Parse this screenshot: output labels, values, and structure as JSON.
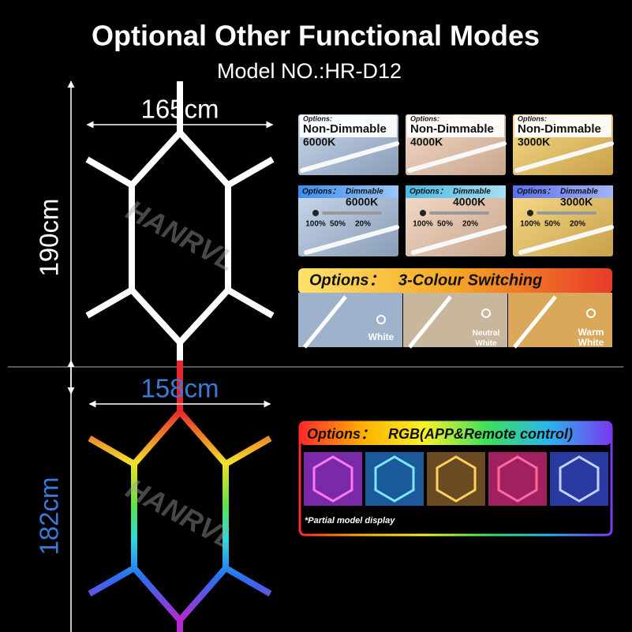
{
  "header": {
    "title": "Optional Other Functional Modes",
    "subtitle": "Model NO.:HR-D12"
  },
  "top_frame": {
    "width_label": "165cm",
    "height_label": "190cm",
    "watermark": "HANRVL"
  },
  "bottom_frame": {
    "width_label": "158cm",
    "height_label": "182cm",
    "watermark": "HANRVL"
  },
  "non_dimmable_cards": [
    {
      "options": "Options:",
      "mode": "Non-Dimmable",
      "temp": "6000K"
    },
    {
      "options": "Options:",
      "mode": "Non-Dimmable",
      "temp": "4000K"
    },
    {
      "options": "Options:",
      "mode": "Non-Dimmable",
      "temp": "3000K"
    }
  ],
  "dimmable_cards": [
    {
      "options": "Options：",
      "mode": "Dimmable",
      "temp": "6000K",
      "levels": [
        "100%",
        "50%",
        "20%"
      ]
    },
    {
      "options": "Options：",
      "mode": "Dimmable",
      "temp": "4000K",
      "levels": [
        "100%",
        "50%",
        "20%"
      ]
    },
    {
      "options": "Options：",
      "mode": "Dimmable",
      "temp": "3000K",
      "levels": [
        "100%",
        "50%",
        "20%"
      ]
    }
  ],
  "colour_switching": {
    "options": "Options：",
    "title": "3-Colour Switching",
    "modes": [
      "White",
      "Neutral White",
      "Warm White"
    ]
  },
  "rgb": {
    "options": "Options：",
    "title": "RGB(APP&Remote control)",
    "note": "*Partial model display"
  }
}
